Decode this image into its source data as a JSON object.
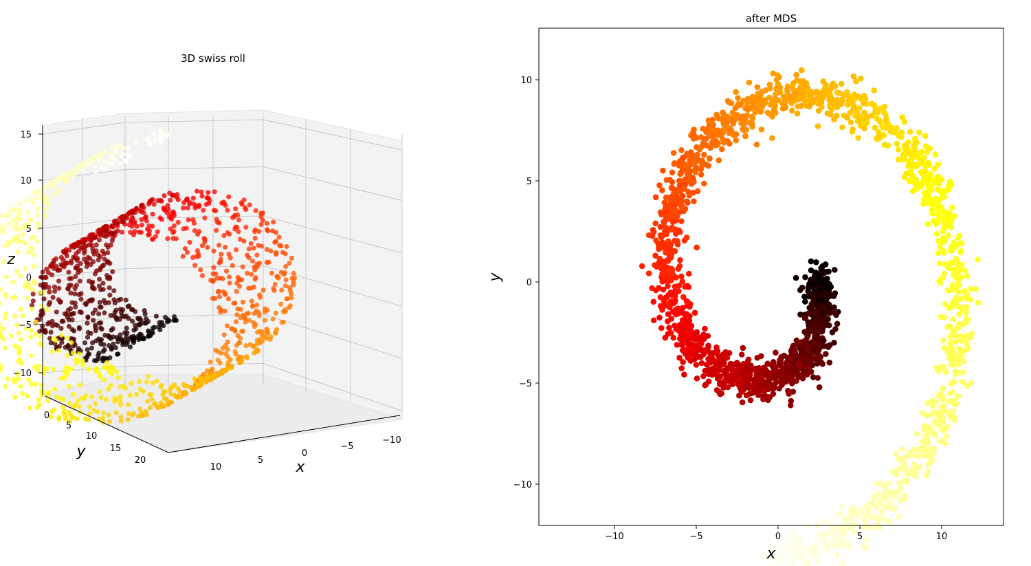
{
  "chart_data": [
    {
      "type": "scatter",
      "projection": "3d",
      "title": "3D swiss roll",
      "xlabel": "x",
      "ylabel": "y",
      "zlabel": "z",
      "colormap": "hot",
      "x_ticks": [
        "10",
        "5",
        "0",
        "−5",
        "−10"
      ],
      "y_ticks": [
        "0",
        "5",
        "10",
        "15",
        "20"
      ],
      "z_ticks": [
        "15",
        "10",
        "5",
        "0",
        "−5",
        "−10"
      ],
      "xlim": [
        -11,
        13
      ],
      "ylim": [
        0,
        21
      ],
      "zlim": [
        -12,
        15
      ],
      "points": {
        "generator": "swiss_roll",
        "n_samples": 1500,
        "t_range_pi": [
          1.5,
          4.5
        ],
        "height_range": [
          0,
          21
        ]
      }
    },
    {
      "type": "scatter",
      "title": "after MDS",
      "xlabel": "x",
      "ylabel": "y",
      "colormap": "hot",
      "xlim": [
        -14.5,
        14
      ],
      "ylim": [
        -12,
        12.5
      ],
      "x_ticks": [
        "−10",
        "−5",
        "0",
        "5",
        "10"
      ],
      "y_ticks": [
        "10",
        "5",
        "0",
        "−5",
        "−10"
      ],
      "points": {
        "generator": "spiral",
        "n_samples": 2200,
        "center": [
          0,
          0
        ],
        "radius_range": [
          2.3,
          13.7
        ],
        "angle_start_deg": -5,
        "angle_span_deg": 460,
        "noise": 0.35
      }
    }
  ]
}
